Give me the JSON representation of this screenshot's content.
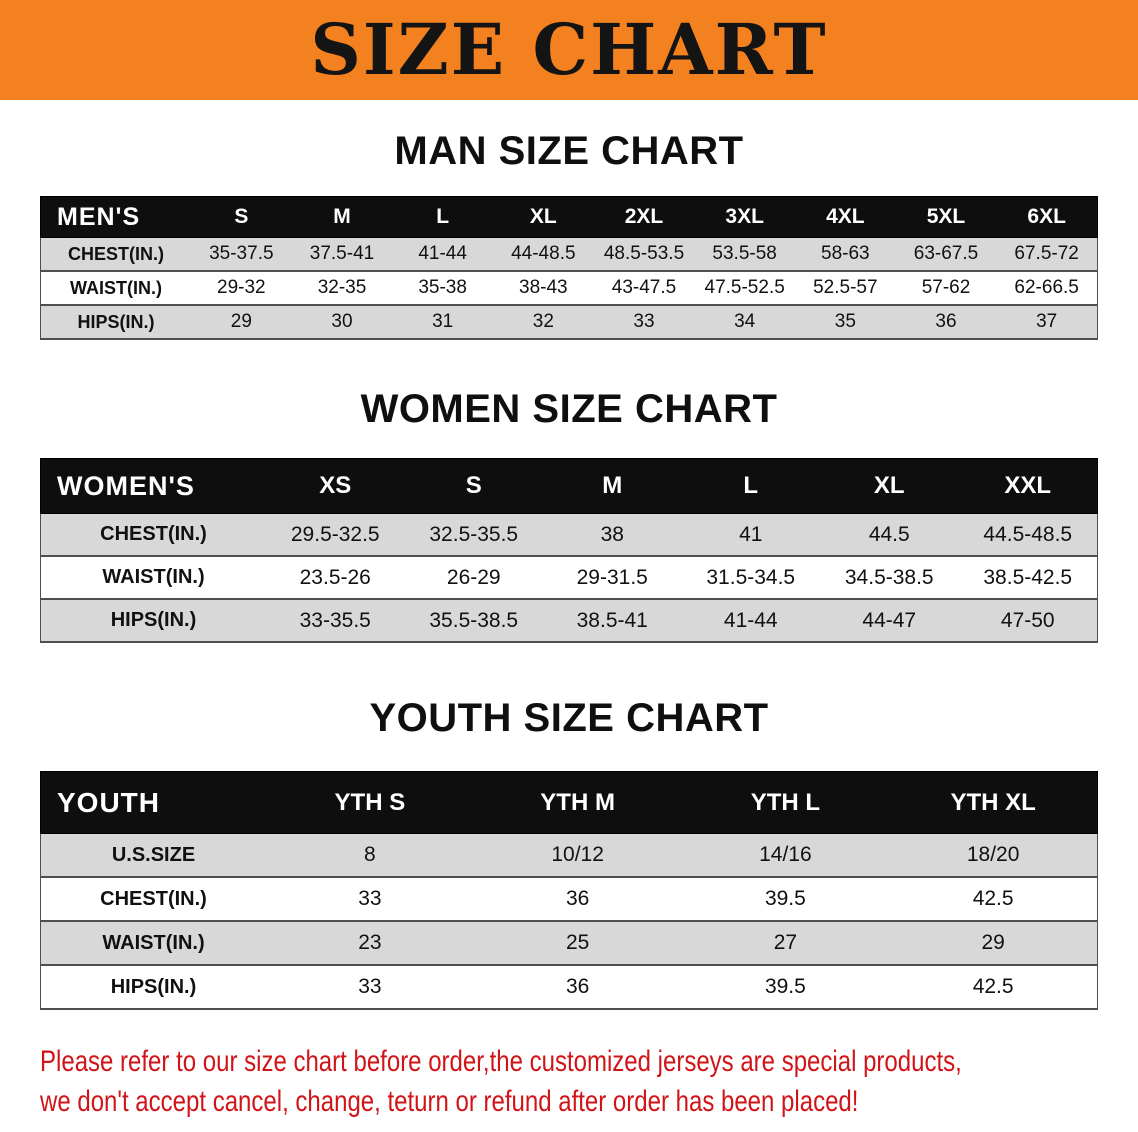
{
  "banner": {
    "title": "SIZE CHART",
    "bg_color": "#f48120"
  },
  "men": {
    "heading": "MAN SIZE CHART",
    "header_label": "MEN'S",
    "columns": [
      "S",
      "M",
      "L",
      "XL",
      "2XL",
      "3XL",
      "4XL",
      "5XL",
      "6XL"
    ],
    "rows": [
      {
        "label": "CHEST(IN.)",
        "values": [
          "35-37.5",
          "37.5-41",
          "41-44",
          "44-48.5",
          "48.5-53.5",
          "53.5-58",
          "58-63",
          "63-67.5",
          "67.5-72"
        ]
      },
      {
        "label": "WAIST(IN.)",
        "values": [
          "29-32",
          "32-35",
          "35-38",
          "38-43",
          "43-47.5",
          "47.5-52.5",
          "52.5-57",
          "57-62",
          "62-66.5"
        ]
      },
      {
        "label": "HIPS(IN.)",
        "values": [
          "29",
          "30",
          "31",
          "32",
          "33",
          "34",
          "35",
          "36",
          "37"
        ]
      }
    ]
  },
  "women": {
    "heading": "WOMEN SIZE CHART",
    "header_label": "WOMEN'S",
    "columns": [
      "XS",
      "S",
      "M",
      "L",
      "XL",
      "XXL"
    ],
    "rows": [
      {
        "label": "CHEST(IN.)",
        "values": [
          "29.5-32.5",
          "32.5-35.5",
          "38",
          "41",
          "44.5",
          "44.5-48.5"
        ]
      },
      {
        "label": "WAIST(IN.)",
        "values": [
          "23.5-26",
          "26-29",
          "29-31.5",
          "31.5-34.5",
          "34.5-38.5",
          "38.5-42.5"
        ]
      },
      {
        "label": "HIPS(IN.)",
        "values": [
          "33-35.5",
          "35.5-38.5",
          "38.5-41",
          "41-44",
          "44-47",
          "47-50"
        ]
      }
    ]
  },
  "youth": {
    "heading": "YOUTH SIZE CHART",
    "header_label": "YOUTH",
    "columns": [
      "YTH S",
      "YTH M",
      "YTH L",
      "YTH XL"
    ],
    "rows": [
      {
        "label": "U.S.SIZE",
        "values": [
          "8",
          "10/12",
          "14/16",
          "18/20"
        ]
      },
      {
        "label": "CHEST(IN.)",
        "values": [
          "33",
          "36",
          "39.5",
          "42.5"
        ]
      },
      {
        "label": "WAIST(IN.)",
        "values": [
          "23",
          "25",
          "27",
          "29"
        ]
      },
      {
        "label": "HIPS(IN.)",
        "values": [
          "33",
          "36",
          "39.5",
          "42.5"
        ]
      }
    ]
  },
  "footer": {
    "line1": "Please refer to our size chart before order,the customized jerseys are special products,",
    "line2": "we don't accept cancel, change, teturn or refund after order has been placed!",
    "color": "#d01418"
  }
}
